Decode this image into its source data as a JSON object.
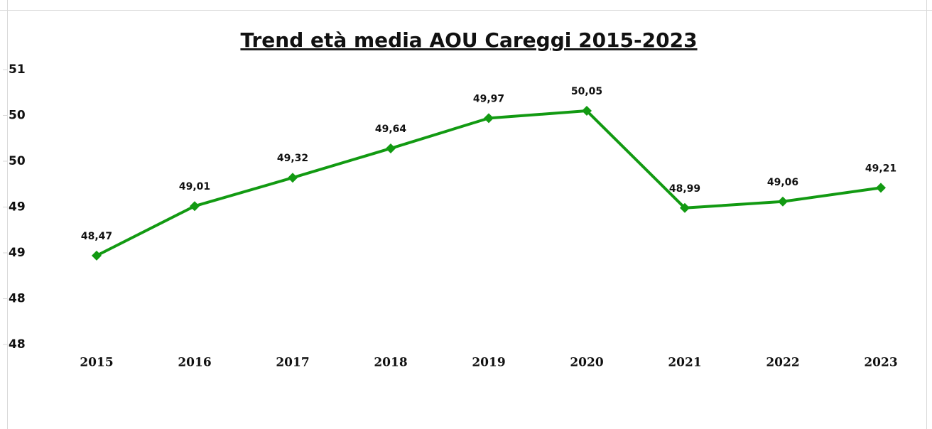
{
  "chart_data": {
    "type": "line",
    "title": "Trend età media AOU Careggi 2015-2023",
    "categories": [
      "2015",
      "2016",
      "2017",
      "2018",
      "2019",
      "2020",
      "2021",
      "2022",
      "2023"
    ],
    "values": [
      48.47,
      49.01,
      49.32,
      49.64,
      49.97,
      50.05,
      48.99,
      49.06,
      49.21
    ],
    "value_labels": [
      "48,47",
      "49,01",
      "49,32",
      "49,64",
      "49,97",
      "50,05",
      "48,99",
      "49,06",
      "49,21"
    ],
    "color": "#129a12",
    "ylim": [
      47.5,
      50.5
    ],
    "yticks": [
      {
        "value": 47.5,
        "label": "48"
      },
      48,
      {
        "value": 48.5,
        "label": "49"
      },
      49,
      {
        "value": 49.5,
        "label": "50"
      },
      50,
      {
        "value": 50.5,
        "label": "51"
      }
    ],
    "grid": false
  }
}
